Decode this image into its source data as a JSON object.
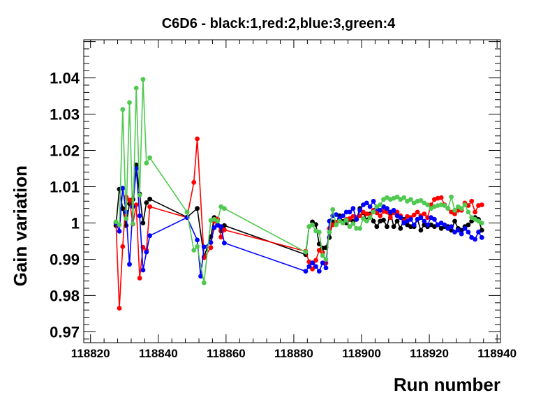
{
  "chart_data": {
    "type": "line",
    "title": "C6D6 - black:1,red:2,blue:3,green:4",
    "xlabel": "Run number",
    "ylabel": "Gain variation",
    "xlim": [
      118818,
      118941
    ],
    "ylim": [
      0.967,
      1.0505
    ],
    "x_ticks": [
      118820,
      118840,
      118860,
      118880,
      118900,
      118920,
      118940
    ],
    "x_tick_labels": [
      "118820",
      "118840",
      "118860",
      "118880",
      "118900",
      "118920",
      "118940"
    ],
    "y_ticks": [
      0.97,
      0.98,
      0.99,
      1.0,
      1.01,
      1.02,
      1.03,
      1.04
    ],
    "y_tick_labels": [
      "0.97",
      "0.98",
      "0.99",
      "1",
      "1.01",
      "1.02",
      "1.03",
      "1.04"
    ],
    "grid": false,
    "legend": "none",
    "series": [
      {
        "name": "black",
        "color": "#000000",
        "x": [
          118827.5,
          118828.5,
          118829.5,
          118830.5,
          118831.5,
          118832.5,
          118833.5,
          118834.5,
          118835.5,
          118836.5,
          118837.5,
          118848.5,
          118851.5,
          118853.5,
          118855.5,
          118856.5,
          118857.5,
          118858.5,
          118859.5,
          118883.5,
          118884.5,
          118885.5,
          118886.5,
          118887.5,
          118888.5,
          118889.5,
          118890.5,
          118891.5,
          118892.5,
          118893.5,
          118894.5,
          118895.5,
          118896.5,
          118897.5,
          118898.5,
          118899.5,
          118900.5,
          118901.5,
          118902.5,
          118903.5,
          118904.5,
          118905.5,
          118906.5,
          118907.5,
          118908.5,
          118909.5,
          118910.5,
          118911.5,
          118912.5,
          118913.5,
          118914.5,
          118915.5,
          118916.5,
          118917.5,
          118918.5,
          118919.5,
          118920.5,
          118921.5,
          118922.5,
          118923.5,
          118924.5,
          118925.5,
          118926.5,
          118927.5,
          118928.5,
          118929.5,
          118930.5,
          118931.5,
          118932.5,
          118933.5,
          118934.5,
          118935.5
        ],
        "y": [
          0.9993,
          1.0093,
          1.004,
          0.9993,
          1.0053,
          1.0065,
          1.016,
          1.008,
          1.0,
          1.0056,
          1.0066,
          1.0016,
          1.004,
          0.9906,
          0.9962,
          1.0015,
          0.9995,
          0.9978,
          0.9993,
          0.9913,
          0.999,
          1.0003,
          0.9996,
          0.9942,
          0.9931,
          0.9932,
          0.996,
          1.0003,
          0.9996,
          1.002,
          1.0004,
          1.0,
          1.001,
          1.0004,
          1.001,
          1.004,
          1.0028,
          1.0008,
          1.0025,
          1.0005,
          0.999,
          1.0005,
          1.0008,
          0.999,
          1.003,
          0.999,
          1.0005,
          0.9985,
          1.001,
          0.9995,
          0.999,
          0.999,
          1.001,
          0.998,
          0.9995,
          0.999,
          0.9995,
          0.999,
          0.9995,
          0.9985,
          0.999,
          0.999,
          0.998,
          1.0005,
          0.9985,
          0.998,
          0.999,
          0.9995,
          1.0005,
          1.0015,
          1.001,
          0.998
        ]
      },
      {
        "name": "red",
        "color": "#ff0000",
        "x": [
          118827.5,
          118828.5,
          118829.5,
          118830.5,
          118831.5,
          118832.5,
          118833.5,
          118834.5,
          118835.5,
          118836.5,
          118837.5,
          118848.5,
          118850.5,
          118851.5,
          118853.5,
          118855.5,
          118856.5,
          118857.5,
          118858.5,
          118859.5,
          118883.5,
          118884.5,
          118885.5,
          118886.5,
          118887.5,
          118888.5,
          118889.5,
          118890.5,
          118891.5,
          118892.5,
          118893.5,
          118894.5,
          118895.5,
          118896.5,
          118897.5,
          118898.5,
          118899.5,
          118900.5,
          118901.5,
          118902.5,
          118903.5,
          118904.5,
          118905.5,
          118906.5,
          118907.5,
          118908.5,
          118909.5,
          118910.5,
          118911.5,
          118912.5,
          118913.5,
          118914.5,
          118915.5,
          118916.5,
          118917.5,
          118918.5,
          118919.5,
          118920.5,
          118921.5,
          118922.5,
          118923.5,
          118924.5,
          118925.5,
          118926.5,
          118927.5,
          118928.5,
          118929.5,
          118930.5,
          118931.5,
          118932.5,
          118933.5,
          118934.5,
          118935.5
        ],
        "y": [
          1.0003,
          0.9765,
          0.9935,
          1.0072,
          1.0063,
          0.9997,
          1.005,
          0.9848,
          0.9933,
          0.9925,
          1.0045,
          1.0015,
          1.0112,
          1.0232,
          0.9904,
          0.9932,
          1.0005,
          1.0011,
          0.9961,
          0.9981,
          0.9922,
          0.9893,
          0.9873,
          0.9897,
          0.9925,
          0.9919,
          0.989,
          0.9985,
          0.9995,
          1.0002,
          1.0008,
          1.0,
          1.001,
          1.0012,
          1.0018,
          1.0015,
          1.002,
          1.003,
          1.0025,
          1.0022,
          1.0035,
          1.0028,
          1.002,
          1.0032,
          1.003,
          1.0015,
          1.0028,
          1.003,
          1.002,
          1.0005,
          1.0018,
          1.0015,
          1.0022,
          1.003,
          1.002,
          1.0025,
          1.0015,
          1.005,
          1.0065,
          1.0068,
          1.007,
          1.005,
          1.004,
          1.003,
          1.0025,
          1.0035,
          1.0035,
          1.0055,
          1.0048,
          1.006,
          1.003,
          1.0048,
          1.005
        ]
      },
      {
        "name": "blue",
        "color": "#0000ff",
        "x": [
          118827.5,
          118828.5,
          118829.5,
          118830.5,
          118831.5,
          118832.5,
          118833.5,
          118834.5,
          118835.5,
          118836.5,
          118837.5,
          118848.5,
          118851.5,
          118852.5,
          118853.5,
          118855.5,
          118856.5,
          118857.5,
          118858.5,
          118859.5,
          118883.5,
          118884.5,
          118885.5,
          118886.5,
          118887.5,
          118888.5,
          118889.5,
          118890.5,
          118891.5,
          118892.5,
          118893.5,
          118894.5,
          118895.5,
          118896.5,
          118897.5,
          118898.5,
          118899.5,
          118900.5,
          118901.5,
          118902.5,
          118903.5,
          118904.5,
          118905.5,
          118906.5,
          118907.5,
          118908.5,
          118909.5,
          118910.5,
          118911.5,
          118912.5,
          118913.5,
          118914.5,
          118915.5,
          118916.5,
          118917.5,
          118918.5,
          118919.5,
          118920.5,
          118921.5,
          118922.5,
          118923.5,
          118924.5,
          118925.5,
          118926.5,
          118927.5,
          118928.5,
          118929.5,
          118930.5,
          118931.5,
          118932.5,
          118933.5,
          118934.5,
          118935.5
        ],
        "y": [
          1.0,
          0.9977,
          1.0096,
          1.003,
          0.9886,
          1.0045,
          1.015,
          1.002,
          0.987,
          0.992,
          0.9965,
          1.0015,
          0.9953,
          0.9853,
          0.9934,
          0.9946,
          0.9987,
          0.9994,
          0.999,
          0.9945,
          0.9867,
          0.988,
          0.989,
          0.988,
          0.9867,
          0.989,
          0.9876,
          1.0005,
          1.002,
          1.0023,
          1.0012,
          1.002,
          1.003,
          1.003,
          1.004,
          1.001,
          1.0035,
          1.005,
          1.0055,
          1.0045,
          1.006,
          1.004,
          1.0035,
          1.0045,
          1.004,
          1.003,
          1.0035,
          1.002,
          1.0015,
          1.0,
          1.0005,
          1.001,
          0.9995,
          1.001,
          1.0015,
          1.0005,
          0.9995,
          1.0015,
          1.001,
          0.9995,
          1.0,
          0.9995,
          0.9985,
          0.999,
          0.9975,
          0.998,
          0.997,
          0.9985,
          0.9975,
          0.996,
          0.9955,
          0.9975,
          0.996
        ]
      },
      {
        "name": "green",
        "color": "#4fc94f",
        "x": [
          118827.5,
          118828.5,
          118829.5,
          118830.5,
          118831.5,
          118832.5,
          118833.5,
          118834.5,
          118835.5,
          118836.5,
          118837.5,
          118848.5,
          118850.5,
          118851.5,
          118853.5,
          118855.5,
          118856.5,
          118857.5,
          118858.5,
          118859.5,
          118883.5,
          118884.5,
          118885.5,
          118886.5,
          118887.5,
          118888.5,
          118889.5,
          118890.5,
          118891.5,
          118892.5,
          118893.5,
          118894.5,
          118895.5,
          118896.5,
          118897.5,
          118898.5,
          118899.5,
          118900.5,
          118901.5,
          118902.5,
          118903.5,
          118904.5,
          118905.5,
          118906.5,
          118907.5,
          118908.5,
          118909.5,
          118910.5,
          118911.5,
          118912.5,
          118913.5,
          118914.5,
          118915.5,
          118916.5,
          118917.5,
          118918.5,
          118919.5,
          118920.5,
          118921.5,
          118922.5,
          118923.5,
          118924.5,
          118925.5,
          118926.5,
          118927.5,
          118928.5,
          118929.5,
          118930.5,
          118931.5,
          118932.5,
          118933.5,
          118934.5,
          118935.5
        ],
        "y": [
          1.0003,
          0.9995,
          1.0313,
          1.0012,
          1.0332,
          0.9998,
          1.0372,
          1.0077,
          1.0396,
          1.0165,
          1.018,
          1.003,
          0.9925,
          0.9935,
          0.9835,
          1.0007,
          1.001,
          1.0005,
          1.0045,
          1.004,
          0.992,
          0.999,
          0.9995,
          0.9978,
          0.9975,
          0.991,
          0.99,
          0.9975,
          1.0037,
          0.9995,
          1.0005,
          1.0,
          1.0008,
          0.999,
          0.9998,
          0.9985,
          0.9985,
          1.0012,
          1.0005,
          1.0015,
          1.003,
          1.0045,
          1.005,
          1.0065,
          1.007,
          1.0065,
          1.0068,
          1.0072,
          1.0065,
          1.007,
          1.006,
          1.0065,
          1.0055,
          1.006,
          1.0062,
          1.0055,
          1.005,
          1.004,
          1.0045,
          1.0048,
          1.005,
          1.0048,
          1.004,
          1.0072,
          1.0035,
          1.0045,
          1.004,
          1.005,
          1.003,
          1.0015,
          1.001,
          1.0005,
          1.0
        ]
      }
    ]
  }
}
